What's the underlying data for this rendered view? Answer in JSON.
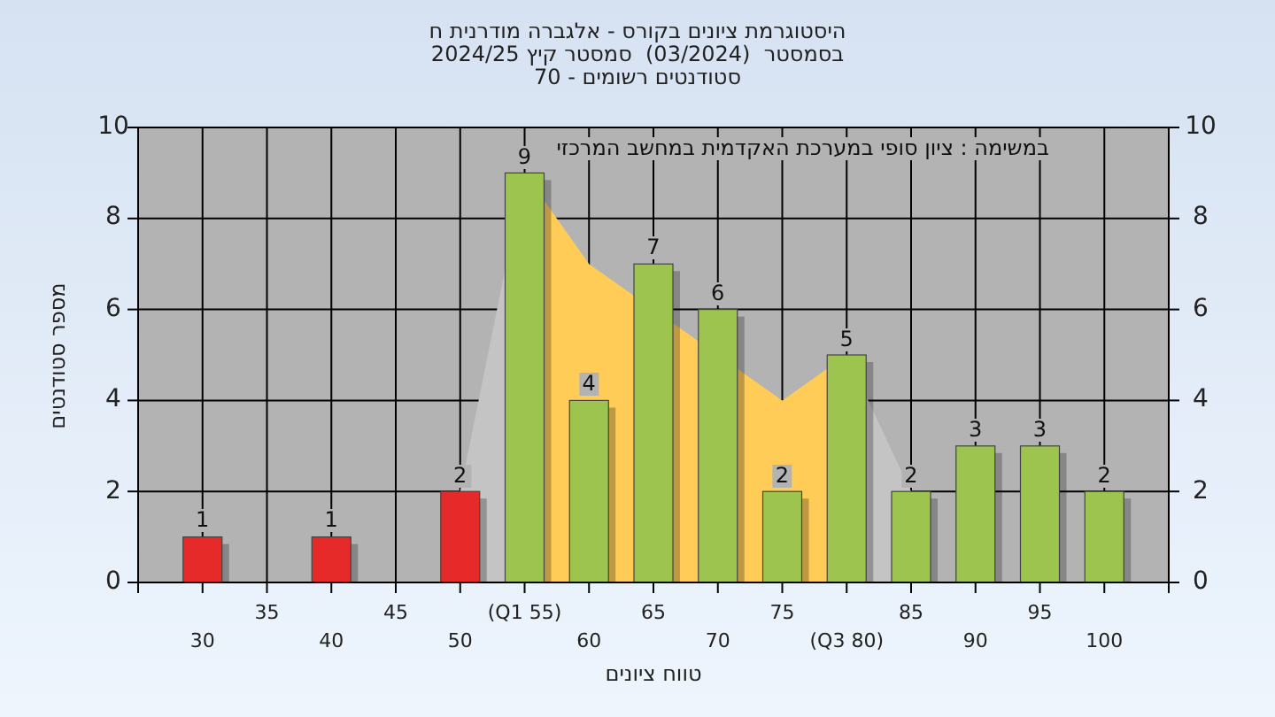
{
  "chart_data": {
    "type": "bar",
    "title": "היסטוגרמת ציונים בקורס - אלגברה מודרנית ח",
    "subtitle": "בסמסטר  (03/2024)  סמסטר קיץ 2024/25\nסטודנטים רשומים - 70",
    "xlabel": "טווח ציונים",
    "ylabel": "מספר סטודנטים",
    "annotations": [
      "במשימה : ציון סופי במערכת האקדמית במחשב המרכזי"
    ],
    "categories": [
      "30",
      "35",
      "40",
      "45",
      "50",
      "(Q1 55)",
      "60",
      "65",
      "70",
      "75",
      "(Q3 80)",
      "85",
      "90",
      "95",
      "100"
    ],
    "series": [
      {
        "type": "area",
        "color": "#c4c4c4",
        "values": [
          null,
          null,
          null,
          null,
          2,
          9,
          null,
          null,
          null,
          null,
          null,
          null,
          null,
          null,
          null
        ]
      },
      {
        "type": "area",
        "color": "#c4c4c4",
        "values": [
          null,
          null,
          null,
          null,
          null,
          null,
          null,
          null,
          null,
          null,
          5,
          2,
          null,
          null,
          null
        ]
      },
      {
        "type": "area",
        "color": "#ffcc58",
        "values": [
          null,
          null,
          null,
          null,
          null,
          9,
          7,
          null,
          null,
          4,
          5,
          null,
          null,
          null,
          null
        ]
      },
      {
        "colors": [
          "#e62a2a",
          "#e62a2a",
          "#e62a2a",
          "#e62a2a",
          "#e62a2a",
          "#9cc44e",
          "#9cc44e",
          "#9cc44e",
          "#9cc44e",
          "#9cc44e",
          "#9cc44e",
          "#9cc44e",
          "#9cc44e",
          "#9cc44e",
          "#9cc44e"
        ],
        "values": [
          1,
          null,
          1,
          null,
          2,
          9,
          4,
          7,
          6,
          2,
          5,
          2,
          3,
          3,
          2
        ],
        "value_labels": [
          "1",
          null,
          "1",
          null,
          "2",
          "9",
          "4",
          "7",
          "6",
          "2",
          "5",
          "2",
          "3",
          "3",
          "2"
        ]
      }
    ],
    "ylim": [
      0,
      10
    ],
    "yticks": [
      0,
      2,
      4,
      6,
      8,
      10
    ],
    "y2lim": [
      0,
      10
    ],
    "y2ticks": [
      0,
      2,
      4,
      6,
      8,
      10
    ],
    "grid": true
  }
}
